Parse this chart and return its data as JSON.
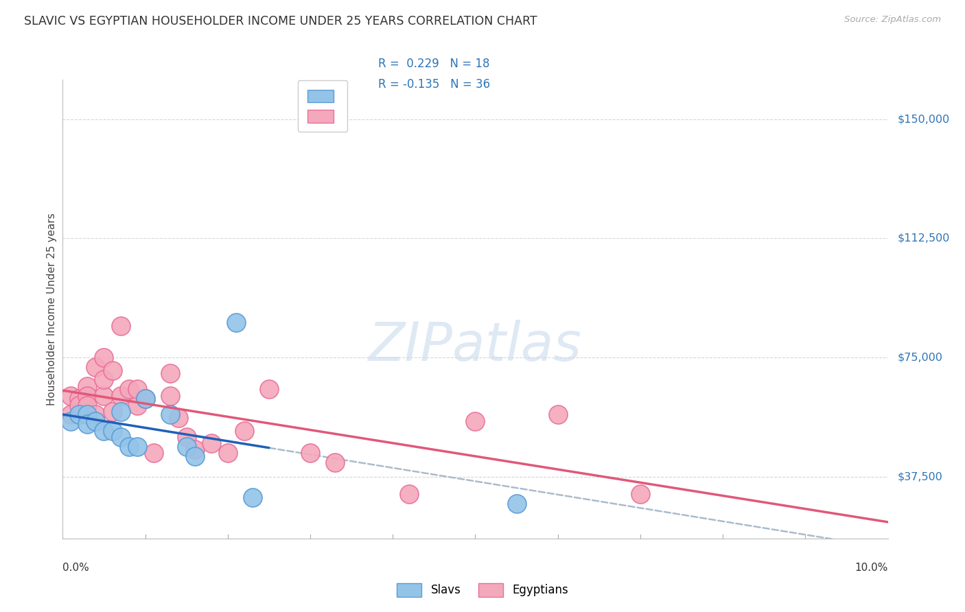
{
  "title": "SLAVIC VS EGYPTIAN HOUSEHOLDER INCOME UNDER 25 YEARS CORRELATION CHART",
  "source": "Source: ZipAtlas.com",
  "ylabel": "Householder Income Under 25 years",
  "xmin": 0.0,
  "xmax": 0.1,
  "ymin": 18000,
  "ymax": 162500,
  "yticks": [
    37500,
    75000,
    112500,
    150000
  ],
  "ytick_labels": [
    "$37,500",
    "$75,000",
    "$112,500",
    "$150,000"
  ],
  "slavs_color": "#93C4E8",
  "slavs_edge": "#5B9BD5",
  "egyptians_color": "#F4A8BB",
  "egyptians_edge": "#E8709A",
  "trendline_slavs_color": "#2060B8",
  "trendline_egyptians_color": "#E05878",
  "dashed_color": "#AABBCC",
  "watermark_color": "#C5D8EC",
  "background_color": "#FFFFFF",
  "grid_color": "#CCCCCC",
  "title_color": "#333333",
  "right_label_color": "#2E75B6",
  "legend_r_color": "#2E75B6",
  "slavs_x": [
    0.001,
    0.002,
    0.003,
    0.003,
    0.004,
    0.005,
    0.006,
    0.007,
    0.007,
    0.008,
    0.009,
    0.01,
    0.013,
    0.015,
    0.016,
    0.021,
    0.023,
    0.055
  ],
  "slavs_y": [
    55000,
    57000,
    57000,
    54000,
    55000,
    52000,
    52000,
    58000,
    50000,
    47000,
    47000,
    62000,
    57000,
    47000,
    44000,
    86000,
    31000,
    29000
  ],
  "egyptians_x": [
    0.001,
    0.001,
    0.002,
    0.002,
    0.003,
    0.003,
    0.003,
    0.004,
    0.004,
    0.005,
    0.005,
    0.005,
    0.006,
    0.006,
    0.007,
    0.007,
    0.008,
    0.009,
    0.009,
    0.01,
    0.011,
    0.013,
    0.013,
    0.014,
    0.015,
    0.016,
    0.018,
    0.02,
    0.022,
    0.025,
    0.03,
    0.033,
    0.042,
    0.05,
    0.06,
    0.07
  ],
  "egyptians_y": [
    63000,
    57000,
    62000,
    60000,
    66000,
    63000,
    60000,
    57000,
    72000,
    63000,
    68000,
    75000,
    58000,
    71000,
    63000,
    85000,
    65000,
    60000,
    65000,
    62000,
    45000,
    63000,
    70000,
    56000,
    50000,
    46000,
    48000,
    45000,
    52000,
    65000,
    45000,
    42000,
    32000,
    55000,
    57000,
    32000
  ]
}
